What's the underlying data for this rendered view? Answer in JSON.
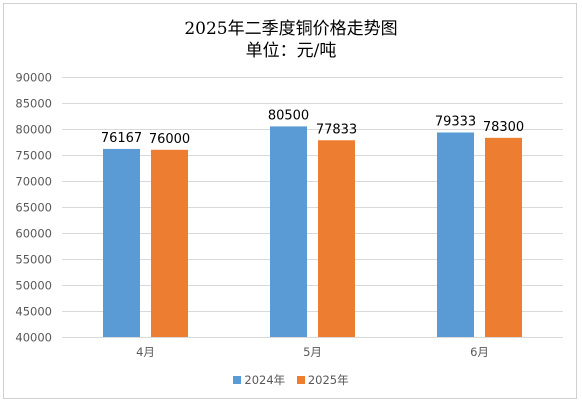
{
  "chart_data": {
    "type": "bar",
    "title": "2025年二季度铜价格走势图",
    "subtitle": "单位：元/吨",
    "categories": [
      "4月",
      "5月",
      "6月"
    ],
    "series": [
      {
        "name": "2024年",
        "values": [
          76167,
          80500,
          79333
        ],
        "color": "#5b9bd5"
      },
      {
        "name": "2025年",
        "values": [
          76000,
          77833,
          78300
        ],
        "color": "#ed7d31"
      }
    ],
    "data_labels": [
      [
        "76167",
        "80500",
        "79333"
      ],
      [
        "76000",
        "77833",
        "78300"
      ]
    ],
    "ylim": [
      40000,
      90000
    ],
    "y_ticks": [
      "40000",
      "45000",
      "50000",
      "55000",
      "60000",
      "65000",
      "70000",
      "75000",
      "80000",
      "85000",
      "90000"
    ],
    "y_tick_values": [
      40000,
      45000,
      50000,
      55000,
      60000,
      65000,
      70000,
      75000,
      80000,
      85000,
      90000
    ],
    "xlabel": "",
    "ylabel": "",
    "grid": true,
    "legend_position": "bottom",
    "gridline_color": "#d9d9d9"
  }
}
